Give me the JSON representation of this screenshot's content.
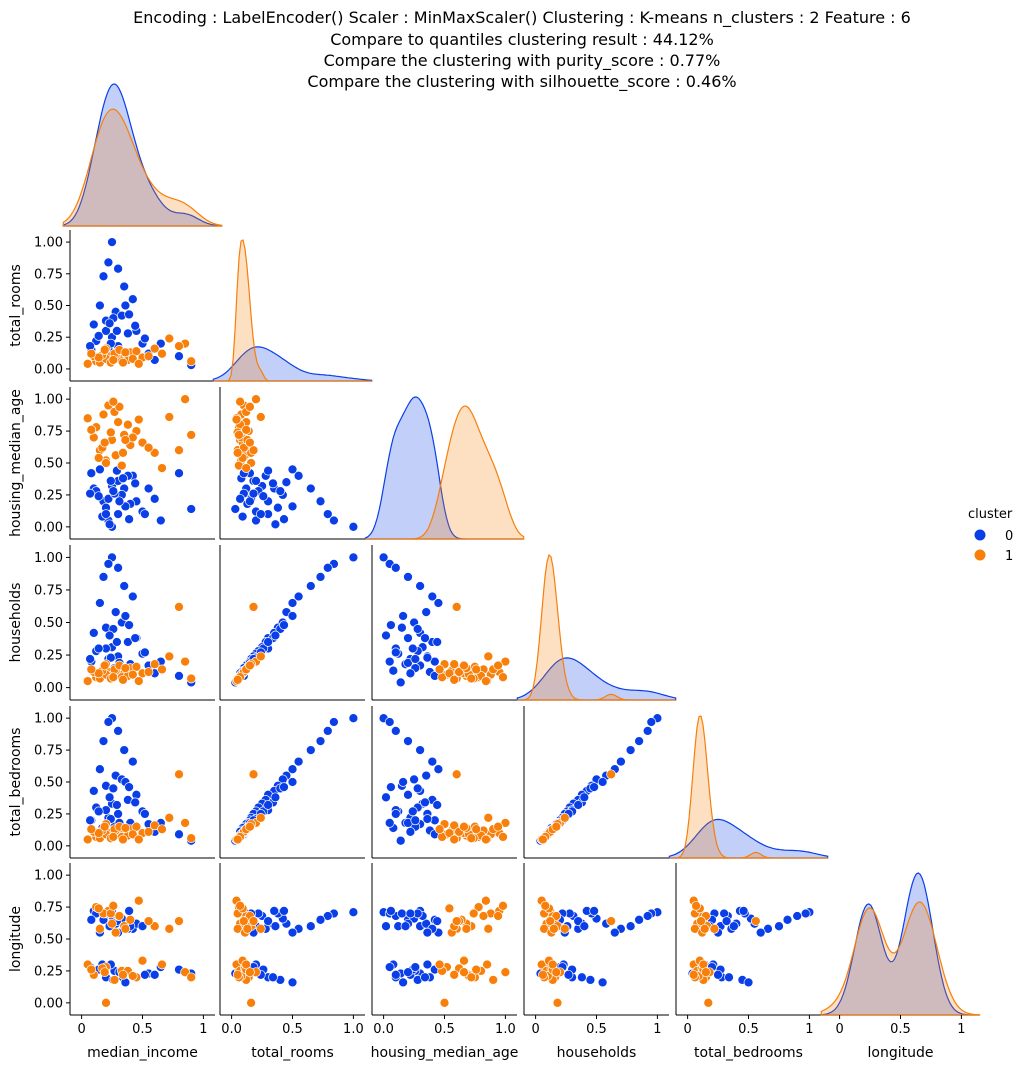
{
  "titles": [
    "Encoding : LabelEncoder() Scaler : MinMaxScaler() Clustering : K-means n_clusters : 2 Feature : 6",
    "Compare to quantiles clustering result : 44.12%",
    "Compare the clustering with purity_score : 0.77%",
    "Compare the clustering with silhouette_score : 0.46%"
  ],
  "colors": {
    "0": "#0a3fe8",
    "1": "#f77f0a"
  },
  "legend": {
    "title": "cluster",
    "labels": [
      "0",
      "1"
    ]
  },
  "chart_data": {
    "type": "scatter",
    "variables": [
      "median_income",
      "total_rooms",
      "housing_median_age",
      "households",
      "total_bedrooms",
      "longitude"
    ],
    "x_ticks": {
      "median_income": [
        "0",
        "0.5",
        "1"
      ],
      "total_rooms": [
        "0.0",
        "0.5",
        "1.0"
      ],
      "housing_median_age": [
        "0.0",
        "0.5",
        "1.0"
      ],
      "households": [
        "0",
        "0.5",
        "1"
      ],
      "total_bedrooms": [
        "0",
        "0.5",
        "1"
      ],
      "longitude": [
        "0",
        "0.5",
        "1"
      ]
    },
    "y_ticks": [
      "0.00",
      "0.25",
      "0.50",
      "0.75",
      "1.00"
    ],
    "hue": "cluster",
    "series": [
      {
        "name": "0",
        "points": [
          [
            0.25,
            1.0,
            0.0,
            1.0,
            1.0,
            0.71
          ],
          [
            0.22,
            0.84,
            0.05,
            0.95,
            0.97,
            0.7
          ],
          [
            0.3,
            0.79,
            0.1,
            0.92,
            0.9,
            0.68
          ],
          [
            0.18,
            0.73,
            0.2,
            0.85,
            0.82,
            0.65
          ],
          [
            0.35,
            0.65,
            0.3,
            0.78,
            0.75,
            0.6
          ],
          [
            0.42,
            0.55,
            0.4,
            0.7,
            0.66,
            0.58
          ],
          [
            0.15,
            0.5,
            0.45,
            0.65,
            0.6,
            0.55
          ],
          [
            0.28,
            0.45,
            0.35,
            0.58,
            0.55,
            0.62
          ],
          [
            0.33,
            0.42,
            0.25,
            0.5,
            0.52,
            0.66
          ],
          [
            0.2,
            0.38,
            0.15,
            0.46,
            0.47,
            0.7
          ],
          [
            0.1,
            0.35,
            0.3,
            0.42,
            0.43,
            0.72
          ],
          [
            0.45,
            0.3,
            0.2,
            0.38,
            0.4,
            0.62
          ],
          [
            0.38,
            0.28,
            0.4,
            0.35,
            0.36,
            0.58
          ],
          [
            0.25,
            0.25,
            0.32,
            0.31,
            0.33,
            0.68
          ],
          [
            0.12,
            0.22,
            0.28,
            0.28,
            0.3,
            0.7
          ],
          [
            0.5,
            0.2,
            0.12,
            0.26,
            0.27,
            0.6
          ],
          [
            0.3,
            0.18,
            0.36,
            0.24,
            0.25,
            0.55
          ],
          [
            0.22,
            0.16,
            0.22,
            0.22,
            0.22,
            0.7
          ],
          [
            0.08,
            0.15,
            0.42,
            0.2,
            0.2,
            0.65
          ],
          [
            0.4,
            0.13,
            0.18,
            0.18,
            0.18,
            0.6
          ],
          [
            0.55,
            0.12,
            0.3,
            0.17,
            0.17,
            0.23
          ],
          [
            0.27,
            0.1,
            0.26,
            0.15,
            0.15,
            0.25
          ],
          [
            0.17,
            0.09,
            0.08,
            0.13,
            0.14,
            0.3
          ],
          [
            0.34,
            0.08,
            0.38,
            0.12,
            0.12,
            0.2
          ],
          [
            0.6,
            0.07,
            0.22,
            0.11,
            0.11,
            0.22
          ],
          [
            0.9,
            0.03,
            0.14,
            0.04,
            0.04,
            0.23
          ],
          [
            0.8,
            0.1,
            0.42,
            0.09,
            0.09,
            0.26
          ],
          [
            0.65,
            0.2,
            0.05,
            0.2,
            0.18,
            0.28
          ],
          [
            0.2,
            0.3,
            0.1,
            0.3,
            0.28,
            0.2
          ],
          [
            0.26,
            0.4,
            0.28,
            0.45,
            0.45,
            0.18
          ],
          [
            0.36,
            0.5,
            0.16,
            0.55,
            0.5,
            0.16
          ],
          [
            0.44,
            0.34,
            0.34,
            0.38,
            0.34,
            0.2
          ],
          [
            0.14,
            0.26,
            0.24,
            0.3,
            0.27,
            0.26
          ],
          [
            0.24,
            0.2,
            0.36,
            0.23,
            0.21,
            0.3
          ],
          [
            0.31,
            0.15,
            0.2,
            0.19,
            0.18,
            0.24
          ],
          [
            0.52,
            0.24,
            0.1,
            0.27,
            0.25,
            0.22
          ],
          [
            0.07,
            0.18,
            0.26,
            0.22,
            0.2,
            0.28
          ],
          [
            0.29,
            0.3,
            0.44,
            0.35,
            0.32,
            0.64
          ],
          [
            0.39,
            0.43,
            0.06,
            0.48,
            0.46,
            0.72
          ],
          [
            0.23,
            0.36,
            0.02,
            0.4,
            0.38,
            0.6
          ]
        ]
      },
      {
        "name": "1",
        "points": [
          [
            0.22,
            0.1,
            0.95,
            0.12,
            0.1,
            0.72
          ],
          [
            0.18,
            0.08,
            0.88,
            0.1,
            0.09,
            0.7
          ],
          [
            0.3,
            0.12,
            0.82,
            0.14,
            0.12,
            0.68
          ],
          [
            0.12,
            0.06,
            0.78,
            0.08,
            0.07,
            0.75
          ],
          [
            0.35,
            0.09,
            0.72,
            0.11,
            0.1,
            0.6
          ],
          [
            0.25,
            0.07,
            0.68,
            0.09,
            0.08,
            0.62
          ],
          [
            0.4,
            0.13,
            0.64,
            0.15,
            0.13,
            0.65
          ],
          [
            0.15,
            0.05,
            0.6,
            0.07,
            0.06,
            0.58
          ],
          [
            0.28,
            0.11,
            0.56,
            0.13,
            0.12,
            0.55
          ],
          [
            0.2,
            0.08,
            0.52,
            0.1,
            0.09,
            0.28
          ],
          [
            0.33,
            0.06,
            0.48,
            0.08,
            0.07,
            0.25
          ],
          [
            0.1,
            0.1,
            0.7,
            0.12,
            0.11,
            0.22
          ],
          [
            0.45,
            0.14,
            0.75,
            0.16,
            0.15,
            0.2
          ],
          [
            0.05,
            0.04,
            0.85,
            0.05,
            0.05,
            0.3
          ],
          [
            0.5,
            0.09,
            0.66,
            0.11,
            0.1,
            0.33
          ],
          [
            0.27,
            0.12,
            0.9,
            0.14,
            0.13,
            0.18
          ],
          [
            0.38,
            0.07,
            0.8,
            0.09,
            0.08,
            0.25
          ],
          [
            0.17,
            0.11,
            0.62,
            0.13,
            0.12,
            0.27
          ],
          [
            0.6,
            0.16,
            0.58,
            0.18,
            0.16,
            0.6
          ],
          [
            0.85,
            0.2,
            1.0,
            0.2,
            0.18,
            0.24
          ],
          [
            0.72,
            0.24,
            0.86,
            0.24,
            0.22,
            0.58
          ],
          [
            0.24,
            0.05,
            0.74,
            0.07,
            0.06,
            0.7
          ],
          [
            0.31,
            0.15,
            0.94,
            0.17,
            0.15,
            0.68
          ],
          [
            0.14,
            0.09,
            0.54,
            0.11,
            0.1,
            0.74
          ],
          [
            0.42,
            0.08,
            0.7,
            0.1,
            0.09,
            0.21
          ],
          [
            0.08,
            0.12,
            0.76,
            0.14,
            0.13,
            0.26
          ],
          [
            0.55,
            0.1,
            0.62,
            0.12,
            0.11,
            0.64
          ],
          [
            0.36,
            0.13,
            0.68,
            0.15,
            0.14,
            0.58
          ],
          [
            0.9,
            0.06,
            0.72,
            0.07,
            0.06,
            0.2
          ],
          [
            0.8,
            0.18,
            0.6,
            0.62,
            0.56,
            0.64
          ],
          [
            0.2,
            0.16,
            0.5,
            0.18,
            0.17,
            0.0
          ],
          [
            0.47,
            0.04,
            0.84,
            0.05,
            0.05,
            0.8
          ],
          [
            0.26,
            0.07,
            0.98,
            0.08,
            0.07,
            0.76
          ],
          [
            0.66,
            0.12,
            0.46,
            0.14,
            0.13,
            0.3
          ],
          [
            0.19,
            0.15,
            0.66,
            0.17,
            0.15,
            0.24
          ],
          [
            0.34,
            0.05,
            0.58,
            0.06,
            0.05,
            0.22
          ]
        ]
      }
    ]
  }
}
